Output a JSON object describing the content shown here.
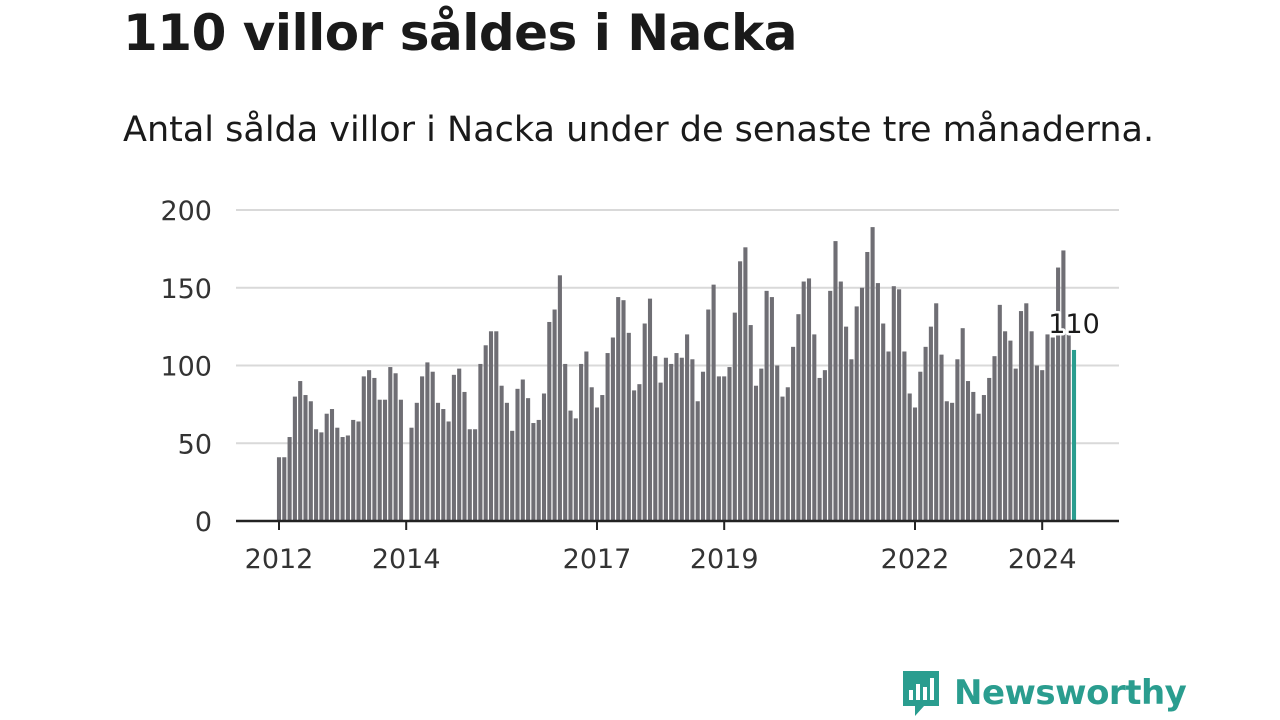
{
  "header": {
    "title": "110 villor såldes i Nacka",
    "subtitle": "Antal sålda villor i Nacka under de senaste tre månaderna."
  },
  "brand": {
    "name": "Newsworthy",
    "accent": "#2a9d8f"
  },
  "colors": {
    "bar": "#6f6e74",
    "highlight": "#2a9d8f",
    "grid": "#d9d9d9",
    "axis": "#222222"
  },
  "chart_data": {
    "type": "bar",
    "title": "110 villor såldes i Nacka",
    "subtitle": "Antal sålda villor i Nacka under de senaste tre månaderna.",
    "xlabel": "",
    "ylabel": "",
    "ylim": [
      0,
      200
    ],
    "yticks": [
      0,
      50,
      100,
      150,
      200
    ],
    "grid": true,
    "start": "2012-01",
    "xticks": [
      {
        "label": "2012",
        "index": 0
      },
      {
        "label": "2014",
        "index": 24
      },
      {
        "label": "2017",
        "index": 60
      },
      {
        "label": "2019",
        "index": 84
      },
      {
        "label": "2022",
        "index": 120
      },
      {
        "label": "2024",
        "index": 144
      }
    ],
    "values": [
      41,
      41,
      54,
      80,
      90,
      81,
      77,
      59,
      57,
      69,
      72,
      60,
      54,
      55,
      65,
      64,
      93,
      97,
      92,
      78,
      78,
      99,
      95,
      78,
      0,
      60,
      76,
      93,
      102,
      96,
      76,
      72,
      64,
      94,
      98,
      83,
      59,
      59,
      101,
      113,
      122,
      122,
      87,
      76,
      58,
      85,
      91,
      79,
      63,
      65,
      82,
      128,
      136,
      158,
      101,
      71,
      66,
      101,
      109,
      86,
      73,
      81,
      108,
      118,
      144,
      142,
      121,
      84,
      88,
      127,
      143,
      106,
      89,
      105,
      101,
      108,
      105,
      120,
      104,
      77,
      96,
      136,
      152,
      93,
      93,
      99,
      134,
      167,
      176,
      126,
      87,
      98,
      148,
      144,
      100,
      80,
      86,
      112,
      133,
      154,
      156,
      120,
      92,
      97,
      148,
      180,
      154,
      125,
      104,
      138,
      150,
      173,
      189,
      153,
      127,
      109,
      151,
      149,
      109,
      82,
      73,
      96,
      112,
      125,
      140,
      107,
      77,
      76,
      104,
      124,
      90,
      83,
      69,
      81,
      92,
      106,
      139,
      122,
      116,
      98,
      135,
      140,
      122,
      100,
      97,
      120,
      118,
      163,
      174,
      121,
      110
    ],
    "highlight_index": 150,
    "last_value_label": "110"
  }
}
